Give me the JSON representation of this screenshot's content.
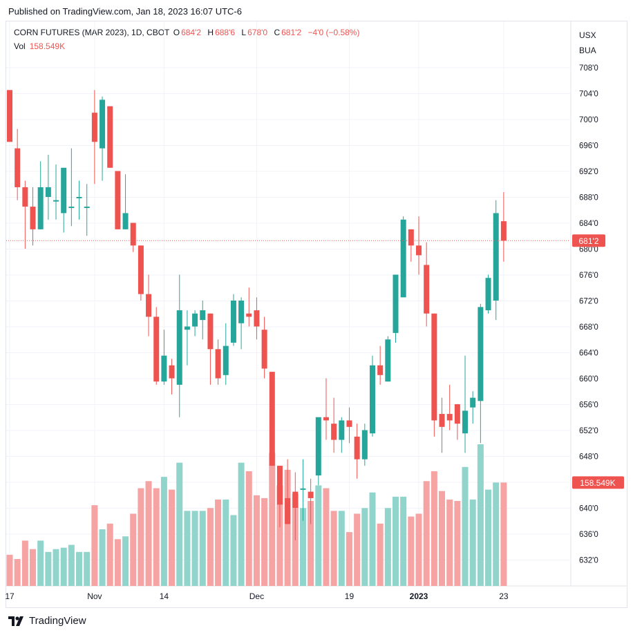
{
  "header": {
    "published": "Published on TradingView.com, Jan 18, 2023 16:07 UTC-6"
  },
  "legend": {
    "symbol": "CORN FUTURES (MAR 2023), 1D, CBOT",
    "o_label": "O",
    "o_value": "684'2",
    "h_label": "H",
    "h_value": "688'6",
    "l_label": "L",
    "l_value": "678'0",
    "c_label": "C",
    "c_value": "681'2",
    "change": "−4'0 (−0.58%)",
    "vol_label": "Vol",
    "vol_value": "158.549K"
  },
  "axis_currency": [
    "USX",
    "BUA"
  ],
  "footer": {
    "brand": "TradingView"
  },
  "colors": {
    "up": "#26a69a",
    "down": "#ef5350",
    "vol_up": "#90d4cc",
    "vol_down": "#f5a3a3"
  },
  "chart_data": {
    "type": "candlestick",
    "y_ticks": [
      "708'0",
      "704'0",
      "700'0",
      "696'0",
      "692'0",
      "688'0",
      "684'0",
      "680'0",
      "676'0",
      "672'0",
      "668'0",
      "664'0",
      "660'0",
      "656'0",
      "652'0",
      "648'0",
      "644'0",
      "640'0",
      "636'0",
      "632'0"
    ],
    "x_ticks": [
      {
        "label": "17",
        "index": 0
      },
      {
        "label": "Nov",
        "index": 11
      },
      {
        "label": "14",
        "index": 20
      },
      {
        "label": "Dec",
        "index": 32
      },
      {
        "label": "19",
        "index": 44
      },
      {
        "label": "2023",
        "index": 53
      },
      {
        "label": "23",
        "index": 64
      }
    ],
    "last_price_label": "681'2",
    "last_price": 681.25,
    "last_volume_label": "158.549K",
    "candles": [
      {
        "o": 704.5,
        "h": 704.5,
        "l": 696.5,
        "c": 696.5,
        "v": 0.22
      },
      {
        "o": 695.5,
        "h": 698.5,
        "l": 687.5,
        "c": 689.5,
        "v": 0.19
      },
      {
        "o": 689.5,
        "h": 690.5,
        "l": 680.0,
        "c": 686.5,
        "v": 0.32
      },
      {
        "o": 686.5,
        "h": 689.5,
        "l": 680.5,
        "c": 683.0,
        "v": 0.26
      },
      {
        "o": 683.0,
        "h": 693.5,
        "l": 683.0,
        "c": 689.5,
        "v": 0.32
      },
      {
        "o": 688.0,
        "h": 694.5,
        "l": 684.5,
        "c": 689.5,
        "v": 0.24
      },
      {
        "o": 687.5,
        "h": 693.0,
        "l": 684.5,
        "c": 687.5,
        "v": 0.26
      },
      {
        "o": 685.5,
        "h": 692.5,
        "l": 682.5,
        "c": 692.5,
        "v": 0.27
      },
      {
        "o": 686.5,
        "h": 695.5,
        "l": 683.5,
        "c": 686.5,
        "v": 0.29
      },
      {
        "o": 688.0,
        "h": 690.5,
        "l": 684.5,
        "c": 688.0,
        "v": 0.24
      },
      {
        "o": 686.5,
        "h": 690.0,
        "l": 682.0,
        "c": 686.5,
        "v": 0.24
      },
      {
        "o": 701.0,
        "h": 704.5,
        "l": 690.0,
        "c": 696.5,
        "v": 0.57
      },
      {
        "o": 695.5,
        "h": 703.5,
        "l": 690.5,
        "c": 703.0,
        "v": 0.4
      },
      {
        "o": 702.0,
        "h": 702.0,
        "l": 692.5,
        "c": 692.5,
        "v": 0.44
      },
      {
        "o": 692.0,
        "h": 692.0,
        "l": 683.0,
        "c": 683.0,
        "v": 0.33
      },
      {
        "o": 683.0,
        "h": 691.5,
        "l": 683.0,
        "c": 685.5,
        "v": 0.35
      },
      {
        "o": 684.0,
        "h": 684.0,
        "l": 679.5,
        "c": 680.5,
        "v": 0.51
      },
      {
        "o": 680.5,
        "h": 680.5,
        "l": 672.0,
        "c": 673.0,
        "v": 0.69
      },
      {
        "o": 673.0,
        "h": 676.0,
        "l": 666.5,
        "c": 669.5,
        "v": 0.74
      },
      {
        "o": 669.5,
        "h": 671.0,
        "l": 659.0,
        "c": 659.5,
        "v": 0.69
      },
      {
        "o": 659.5,
        "h": 667.5,
        "l": 659.0,
        "c": 663.5,
        "v": 0.77
      },
      {
        "o": 662.0,
        "h": 663.0,
        "l": 657.5,
        "c": 660.0,
        "v": 0.68
      },
      {
        "o": 659.0,
        "h": 676.0,
        "l": 654.0,
        "c": 670.5,
        "v": 0.87
      },
      {
        "o": 667.5,
        "h": 670.5,
        "l": 662.0,
        "c": 668.0,
        "v": 0.53
      },
      {
        "o": 668.0,
        "h": 670.5,
        "l": 666.5,
        "c": 670.0,
        "v": 0.53
      },
      {
        "o": 669.0,
        "h": 672.0,
        "l": 666.0,
        "c": 670.5,
        "v": 0.53
      },
      {
        "o": 670.0,
        "h": 670.0,
        "l": 659.0,
        "c": 664.5,
        "v": 0.55
      },
      {
        "o": 664.5,
        "h": 666.0,
        "l": 659.0,
        "c": 660.0,
        "v": 0.61
      },
      {
        "o": 660.5,
        "h": 668.5,
        "l": 659.0,
        "c": 665.0,
        "v": 0.61
      },
      {
        "o": 665.5,
        "h": 673.0,
        "l": 665.0,
        "c": 672.0,
        "v": 0.5
      },
      {
        "o": 668.5,
        "h": 672.5,
        "l": 664.5,
        "c": 672.0,
        "v": 0.87
      },
      {
        "o": 670.0,
        "h": 674.0,
        "l": 668.0,
        "c": 669.5,
        "v": 0.81
      },
      {
        "o": 670.5,
        "h": 672.5,
        "l": 666.0,
        "c": 668.0,
        "v": 0.64
      },
      {
        "o": 667.5,
        "h": 669.5,
        "l": 660.0,
        "c": 661.5,
        "v": 0.62
      },
      {
        "o": 661.0,
        "h": 661.0,
        "l": 646.5,
        "c": 646.5,
        "v": 0.94
      },
      {
        "o": 646.5,
        "h": 646.5,
        "l": 637.0,
        "c": 640.5,
        "v": 0.71
      },
      {
        "o": 641.5,
        "h": 647.5,
        "l": 637.5,
        "c": 637.5,
        "v": 0.82
      },
      {
        "o": 642.5,
        "h": 645.5,
        "l": 635.0,
        "c": 640.0,
        "v": 0.65
      },
      {
        "o": 643.0,
        "h": 647.5,
        "l": 638.0,
        "c": 643.0,
        "v": 0.55
      },
      {
        "o": 642.5,
        "h": 644.5,
        "l": 637.5,
        "c": 641.5,
        "v": 0.6
      },
      {
        "o": 645.0,
        "h": 653.5,
        "l": 643.5,
        "c": 654.0,
        "v": 0.71
      },
      {
        "o": 654.0,
        "h": 660.0,
        "l": 650.5,
        "c": 653.5,
        "v": 0.69
      },
      {
        "o": 653.0,
        "h": 657.0,
        "l": 648.5,
        "c": 650.5,
        "v": 0.53
      },
      {
        "o": 650.5,
        "h": 654.0,
        "l": 648.5,
        "c": 653.5,
        "v": 0.53
      },
      {
        "o": 653.5,
        "h": 655.5,
        "l": 650.0,
        "c": 652.5,
        "v": 0.38
      },
      {
        "o": 651.0,
        "h": 653.0,
        "l": 644.5,
        "c": 647.5,
        "v": 0.51
      },
      {
        "o": 647.5,
        "h": 653.0,
        "l": 646.5,
        "c": 652.0,
        "v": 0.55
      },
      {
        "o": 651.5,
        "h": 663.5,
        "l": 651.0,
        "c": 662.0,
        "v": 0.66
      },
      {
        "o": 662.0,
        "h": 665.0,
        "l": 659.0,
        "c": 660.5,
        "v": 0.44
      },
      {
        "o": 659.5,
        "h": 666.5,
        "l": 659.5,
        "c": 666.0,
        "v": 0.55
      },
      {
        "o": 667.0,
        "h": 675.5,
        "l": 665.5,
        "c": 676.0,
        "v": 0.63
      },
      {
        "o": 672.5,
        "h": 685.0,
        "l": 672.5,
        "c": 684.5,
        "v": 0.63
      },
      {
        "o": 683.0,
        "h": 683.0,
        "l": 678.0,
        "c": 680.5,
        "v": 0.49
      },
      {
        "o": 680.5,
        "h": 685.0,
        "l": 676.0,
        "c": 679.0,
        "v": 0.51
      },
      {
        "o": 677.5,
        "h": 681.0,
        "l": 668.0,
        "c": 670.0,
        "v": 0.74
      },
      {
        "o": 670.0,
        "h": 670.0,
        "l": 651.0,
        "c": 653.5,
        "v": 0.81
      },
      {
        "o": 654.5,
        "h": 657.0,
        "l": 648.5,
        "c": 652.5,
        "v": 0.67
      },
      {
        "o": 654.5,
        "h": 659.0,
        "l": 652.0,
        "c": 653.5,
        "v": 0.61
      },
      {
        "o": 656.0,
        "h": 656.0,
        "l": 650.5,
        "c": 653.0,
        "v": 0.6
      },
      {
        "o": 651.5,
        "h": 663.5,
        "l": 648.5,
        "c": 655.0,
        "v": 0.84
      },
      {
        "o": 655.5,
        "h": 658.0,
        "l": 653.0,
        "c": 657.0,
        "v": 0.61
      },
      {
        "o": 656.5,
        "h": 671.5,
        "l": 650.0,
        "c": 671.0,
        "v": 1.0
      },
      {
        "o": 670.5,
        "h": 676.0,
        "l": 670.0,
        "c": 675.5,
        "v": 0.68
      },
      {
        "o": 672.0,
        "h": 687.5,
        "l": 669.0,
        "c": 685.5,
        "v": 0.73
      },
      {
        "o": 684.25,
        "h": 688.75,
        "l": 678.0,
        "c": 681.25,
        "v": 0.73
      }
    ]
  }
}
